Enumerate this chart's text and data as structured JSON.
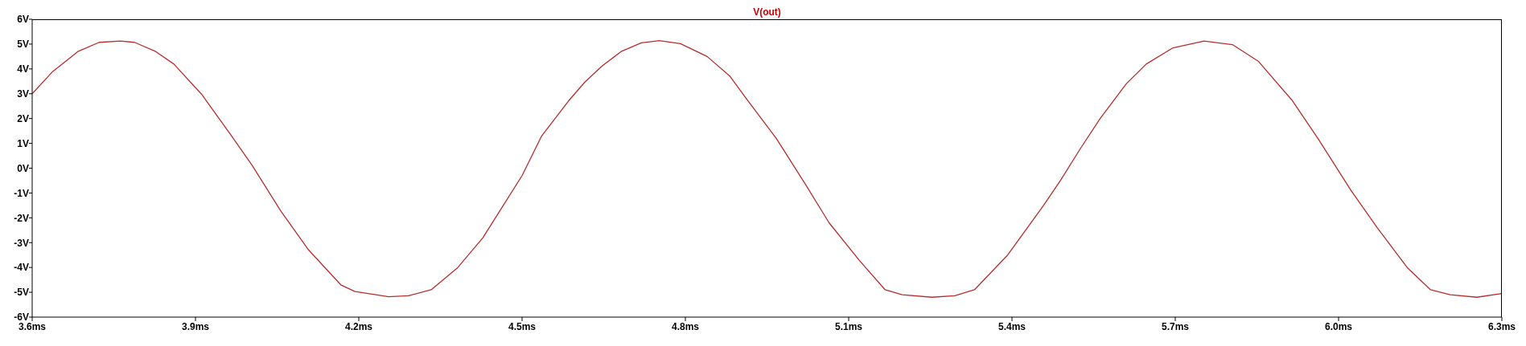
{
  "chart_data": {
    "type": "line",
    "title": "V(out)",
    "marker": "none",
    "line_style": "solid",
    "xlim": [
      3.6,
      6.3
    ],
    "ylim": [
      -6,
      6
    ],
    "xticks": [
      {
        "value": 3.6,
        "label": "3.6ms"
      },
      {
        "value": 3.9,
        "label": "3.9ms"
      },
      {
        "value": 4.2,
        "label": "4.2ms"
      },
      {
        "value": 4.5,
        "label": "4.5ms"
      },
      {
        "value": 4.8,
        "label": "4.8ms"
      },
      {
        "value": 5.1,
        "label": "5.1ms"
      },
      {
        "value": 5.4,
        "label": "5.4ms"
      },
      {
        "value": 5.7,
        "label": "5.7ms"
      },
      {
        "value": 6.0,
        "label": "6.0ms"
      },
      {
        "value": 6.3,
        "label": "6.3ms"
      }
    ],
    "yticks": [
      {
        "value": -6,
        "label": "-6V"
      },
      {
        "value": -5,
        "label": "-5V"
      },
      {
        "value": -4,
        "label": "-4V"
      },
      {
        "value": -3,
        "label": "-3V"
      },
      {
        "value": -2,
        "label": "-2V"
      },
      {
        "value": -1,
        "label": "-1V"
      },
      {
        "value": 0,
        "label": "0V"
      },
      {
        "value": 1,
        "label": "1V"
      },
      {
        "value": 2,
        "label": "2V"
      },
      {
        "value": 3,
        "label": "3V"
      },
      {
        "value": 4,
        "label": "4V"
      },
      {
        "value": 5,
        "label": "5V"
      },
      {
        "value": 6,
        "label": "6V"
      }
    ],
    "series": [
      {
        "color": "#b82c2c",
        "x": [
          3.6,
          3.638,
          3.684,
          3.723,
          3.762,
          3.788,
          3.827,
          3.86,
          3.912,
          3.964,
          4.004,
          4.056,
          4.108,
          4.167,
          4.193,
          4.255,
          4.291,
          4.333,
          4.382,
          4.428,
          4.5,
          4.536,
          4.585,
          4.615,
          4.646,
          4.682,
          4.719,
          4.752,
          4.791,
          4.84,
          4.882,
          4.912,
          4.967,
          5.022,
          5.064,
          5.119,
          5.167,
          5.198,
          5.253,
          5.295,
          5.331,
          5.392,
          5.458,
          5.489,
          5.526,
          5.562,
          5.61,
          5.647,
          5.696,
          5.753,
          5.805,
          5.853,
          5.914,
          5.962,
          6.023,
          6.071,
          6.126,
          6.169,
          6.205,
          6.254,
          6.3
        ],
        "values": [
          3.0,
          3.9,
          4.7,
          5.07,
          5.12,
          5.07,
          4.7,
          4.2,
          2.96,
          1.37,
          0.12,
          -1.7,
          -3.3,
          -4.7,
          -4.97,
          -5.18,
          -5.14,
          -4.9,
          -4.0,
          -2.8,
          -0.3,
          1.3,
          2.7,
          3.46,
          4.1,
          4.7,
          5.05,
          5.14,
          5.02,
          4.5,
          3.7,
          2.8,
          1.2,
          -0.7,
          -2.2,
          -3.7,
          -4.9,
          -5.1,
          -5.2,
          -5.14,
          -4.9,
          -3.5,
          -1.5,
          -0.5,
          0.8,
          2.0,
          3.4,
          4.2,
          4.85,
          5.12,
          4.98,
          4.3,
          2.75,
          1.2,
          -0.9,
          -2.4,
          -4.0,
          -4.9,
          -5.1,
          -5.2,
          -5.05
        ]
      }
    ]
  }
}
